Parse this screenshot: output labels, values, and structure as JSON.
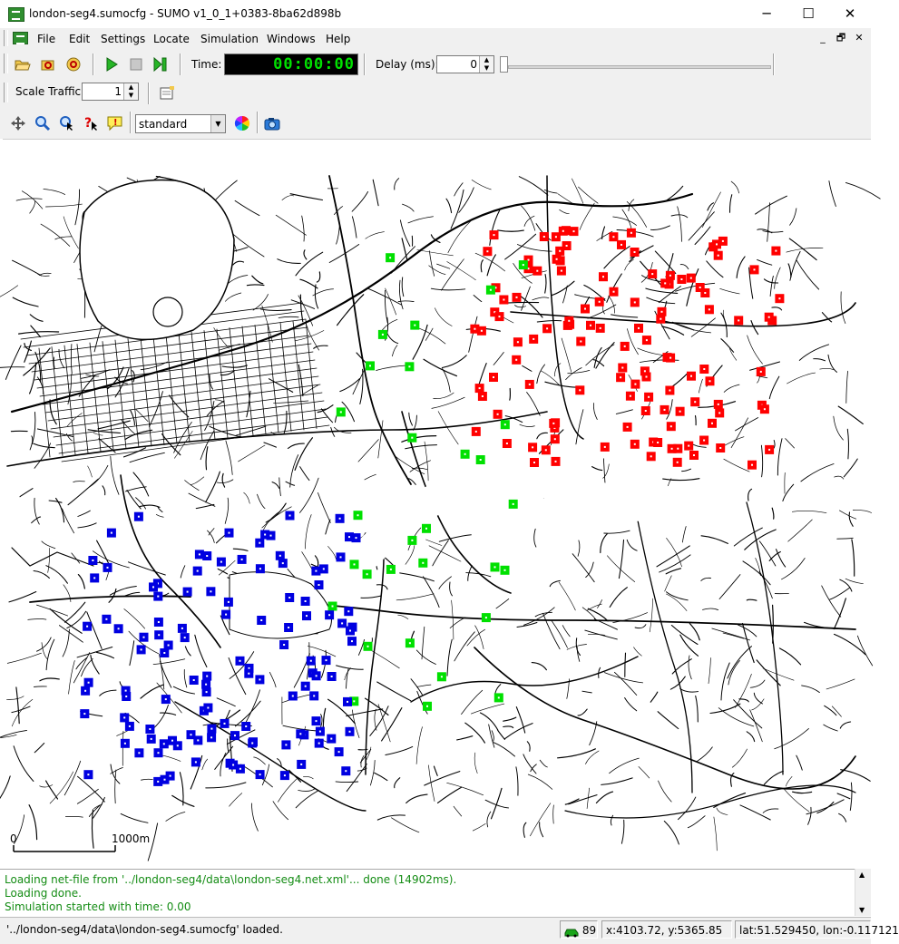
{
  "window": {
    "title": "london-seg4.sumocfg - SUMO v1_0_1+0383-8ba62d898b",
    "minimize": "─",
    "maximize": "☐",
    "close": "✕"
  },
  "menu": {
    "items": [
      "File",
      "Edit",
      "Settings",
      "Locate",
      "Simulation",
      "Windows",
      "Help"
    ],
    "mdi_minimize": "_",
    "mdi_restore": "🗗",
    "mdi_close": "✕"
  },
  "toolbar": {
    "time_label": "Time:",
    "time_value": "00:00:00",
    "delay_label": "Delay (ms):",
    "delay_value": "0",
    "delay_slider_fraction": 0,
    "scale_label": "Scale Traffic:",
    "scale_value": "1",
    "scheme_value": "standard"
  },
  "map": {
    "scale_start": "0",
    "scale_end": "1000m"
  },
  "log": {
    "lines": [
      "Loading net-file from '../london-seg4/data\\london-seg4.net.xml'... done (14902ms).",
      "Loading done.",
      "Simulation started with time: 0.00"
    ]
  },
  "status": {
    "message": "'../london-seg4/data\\london-seg4.sumocfg' loaded.",
    "vehicle_count": "89",
    "coords": "x:4103.72, y:5365.85",
    "latlon": "lat:51.529450, lon:-0.117121"
  },
  "colors": {
    "red": "#ff0000",
    "green": "#00e000",
    "blue": "#0000e0",
    "time_green": "#00e000",
    "log_green": "#148c14"
  }
}
